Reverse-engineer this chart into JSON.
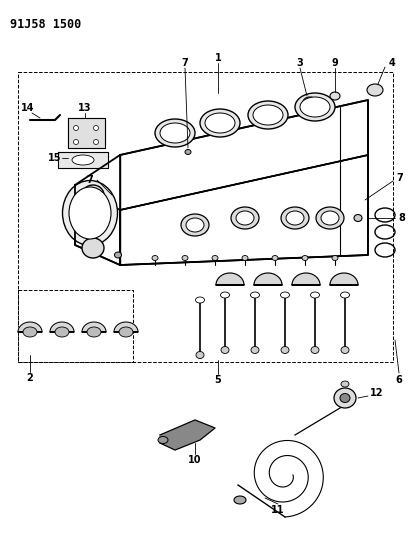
{
  "title": "91J58 1500",
  "bg_color": "#ffffff",
  "line_color": "#000000",
  "fig_w": 4.1,
  "fig_h": 5.33,
  "dpi": 100
}
